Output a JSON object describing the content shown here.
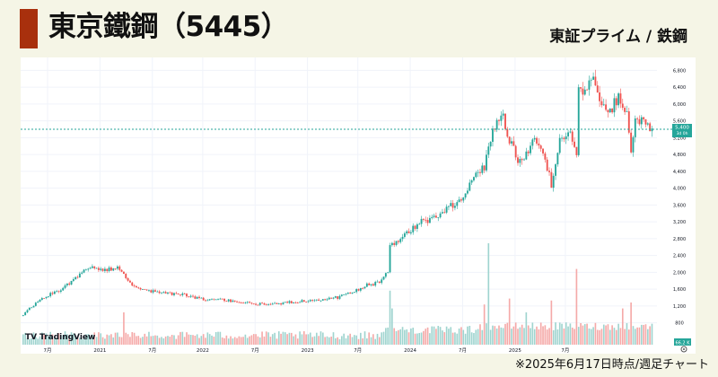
{
  "header": {
    "title": "東京鐵鋼（5445）",
    "market": "東証プライム / 鉄鋼"
  },
  "footer": {
    "note": "※2025年6月17日時点/週足チャート"
  },
  "watermark": "TradingView",
  "colors": {
    "up": "#26a69a",
    "down": "#ef5350",
    "vol_up": "#9fd4cf",
    "vol_down": "#f5a9a8",
    "accent": "#a8300d"
  },
  "chart_data": {
    "type": "candlestick",
    "x_tick_labels": [
      "7月",
      "2021",
      "7月",
      "2022",
      "7月",
      "2023",
      "7月",
      "2024",
      "7月",
      "2025",
      "7月"
    ],
    "y_tick_labels": [
      "800",
      "1,200",
      "1,600",
      "2,000",
      "2,400",
      "2,800",
      "3,200",
      "3,600",
      "4,000",
      "4,400",
      "4,800",
      "5,200",
      "5,600",
      "6,000",
      "6,400",
      "6,800"
    ],
    "ylim": [
      600,
      7000
    ],
    "last_price": {
      "label": "5,400",
      "countdown": "3d 0h"
    },
    "volume_label": "66.2 K",
    "close_anchors": [
      [
        0,
        1000
      ],
      [
        8,
        1350
      ],
      [
        18,
        1600
      ],
      [
        26,
        1900
      ],
      [
        32,
        2150
      ],
      [
        38,
        2050
      ],
      [
        46,
        2100
      ],
      [
        52,
        1700
      ],
      [
        60,
        1550
      ],
      [
        70,
        1500
      ],
      [
        78,
        1450
      ],
      [
        86,
        1350
      ],
      [
        94,
        1350
      ],
      [
        102,
        1300
      ],
      [
        110,
        1250
      ],
      [
        120,
        1250
      ],
      [
        130,
        1300
      ],
      [
        140,
        1350
      ],
      [
        150,
        1400
      ],
      [
        158,
        1550
      ],
      [
        164,
        1700
      ],
      [
        170,
        1750
      ],
      [
        174,
        2000
      ],
      [
        175,
        2600
      ],
      [
        182,
        2900
      ],
      [
        190,
        3200
      ],
      [
        196,
        3300
      ],
      [
        202,
        3500
      ],
      [
        210,
        3800
      ],
      [
        216,
        4400
      ],
      [
        220,
        4500
      ],
      [
        224,
        5400
      ],
      [
        228,
        5850
      ],
      [
        232,
        5150
      ],
      [
        236,
        4700
      ],
      [
        240,
        4800
      ],
      [
        244,
        5200
      ],
      [
        248,
        4800
      ],
      [
        252,
        4100
      ],
      [
        256,
        5100
      ],
      [
        260,
        5400
      ],
      [
        264,
        4700
      ],
      [
        265,
        6500
      ],
      [
        268,
        6300
      ],
      [
        272,
        6700
      ],
      [
        276,
        6000
      ],
      [
        280,
        5800
      ],
      [
        284,
        6200
      ],
      [
        288,
        5700
      ],
      [
        290,
        4800
      ],
      [
        292,
        5700
      ],
      [
        296,
        5500
      ],
      [
        300,
        5400
      ]
    ],
    "volume_spikes": [
      [
        48,
        1.0
      ],
      [
        175,
        2.1
      ],
      [
        176,
        1.2
      ],
      [
        220,
        1.4
      ],
      [
        222,
        4.5
      ],
      [
        232,
        1.7
      ],
      [
        240,
        1.0
      ],
      [
        252,
        1.6
      ],
      [
        264,
        3.2
      ],
      [
        286,
        1.2
      ],
      [
        290,
        1.5
      ]
    ]
  }
}
